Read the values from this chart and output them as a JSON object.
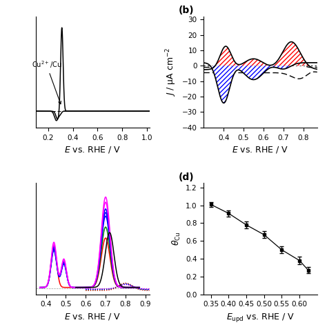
{
  "background_color": "#ffffff",
  "label_fontsize": 10,
  "tick_fontsize": 7.5,
  "axis_label_fontsize": 9,
  "panel_b": {
    "yticks": [
      -40,
      -30,
      -20,
      -10,
      0,
      10,
      20,
      30
    ],
    "xticks": [
      0.4,
      0.5,
      0.6,
      0.7,
      0.8
    ]
  },
  "panel_d": {
    "data_x": [
      0.35,
      0.4,
      0.45,
      0.5,
      0.55,
      0.6,
      0.625
    ],
    "data_y": [
      1.01,
      0.91,
      0.78,
      0.67,
      0.5,
      0.38,
      0.27
    ],
    "data_yerr": [
      0.025,
      0.035,
      0.04,
      0.04,
      0.04,
      0.04,
      0.035
    ],
    "xticks": [
      0.35,
      0.4,
      0.45,
      0.5,
      0.55,
      0.6
    ],
    "yticks": [
      0,
      0.2,
      0.4,
      0.6,
      0.8,
      1.0,
      1.2
    ]
  }
}
